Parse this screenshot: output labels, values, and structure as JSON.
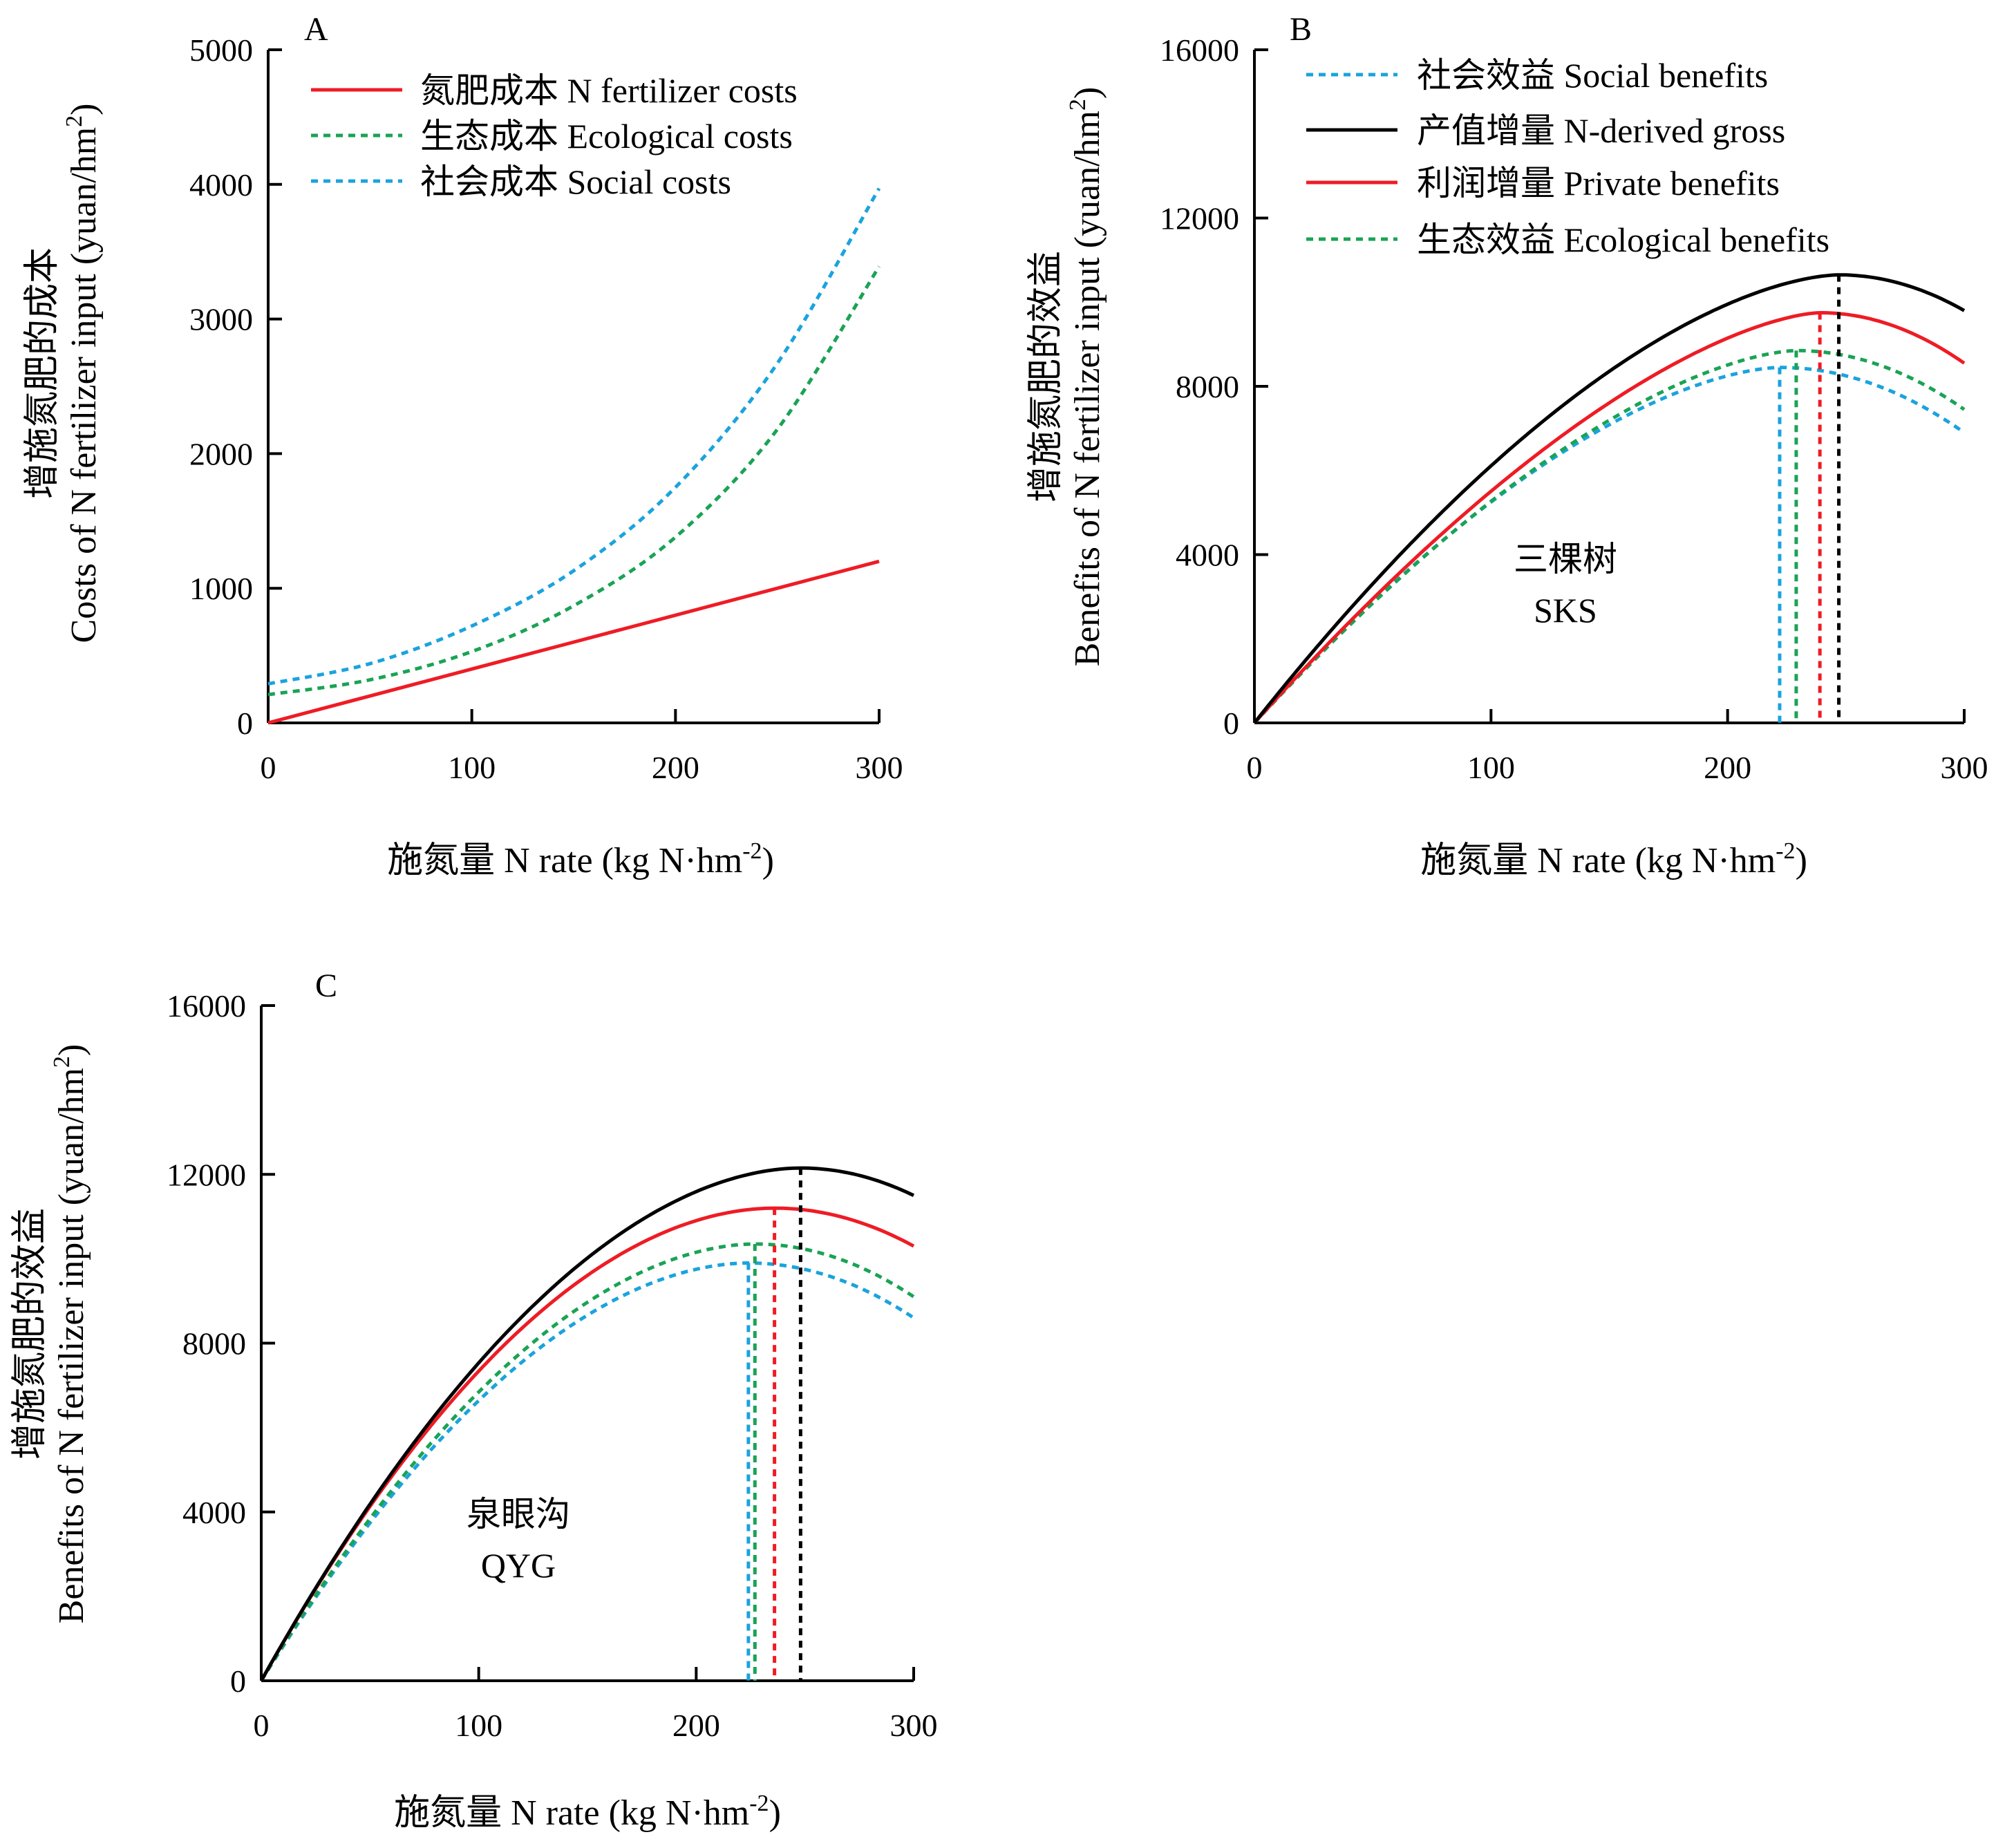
{
  "figure": {
    "x_axis_title": "施氮量  N rate (kg N·hm",
    "x_axis_title_sup": "-2",
    "x_axis_title_end": ")"
  },
  "colors": {
    "red": "#ee1c25",
    "green": "#1aa355",
    "blue": "#1ba3dd",
    "black": "#000000"
  },
  "chart_data": [
    {
      "panel": "A",
      "type": "line",
      "ylabel_cn": "增施氮肥的成本",
      "ylabel_en": "Costs of  N fertilizer input (yuan/hm",
      "ylabel_sup": "2",
      "ylabel_end": ")",
      "xlim": [
        0,
        300
      ],
      "ylim": [
        0,
        5000
      ],
      "xticks": [
        "0",
        "100",
        "200",
        "300"
      ],
      "yticks": [
        "0",
        "1000",
        "2000",
        "3000",
        "4000",
        "5000"
      ],
      "legend_position": "top-left",
      "x": [
        0,
        50,
        100,
        150,
        200,
        250,
        300
      ],
      "series": [
        {
          "name": "氮肥成本 N fertilizer costs",
          "color": "red",
          "dash": false,
          "values": [
            0,
            200,
            400,
            600,
            800,
            1000,
            1200
          ]
        },
        {
          "name": "生态成本 Ecological costs",
          "color": "green",
          "dash": true,
          "values": [
            210,
            320,
            530,
            870,
            1380,
            2180,
            3390
          ]
        },
        {
          "name": "社会成本 Social costs",
          "color": "blue",
          "dash": true,
          "values": [
            290,
            440,
            720,
            1130,
            1750,
            2670,
            3970
          ]
        }
      ]
    },
    {
      "panel": "B",
      "type": "line",
      "ylabel_cn": "增施氮肥的效益",
      "ylabel_en": "Benefits of  N fertilizer input (yuan/hm",
      "ylabel_sup": "2",
      "ylabel_end": ")",
      "xlim": [
        0,
        300
      ],
      "ylim": [
        0,
        16000
      ],
      "xticks": [
        "0",
        "100",
        "200",
        "300"
      ],
      "yticks": [
        "0",
        "4000",
        "8000",
        "12000",
        "16000"
      ],
      "legend_position": "top",
      "site_label_cn": "三棵树",
      "site_label_en": "SKS",
      "series": [
        {
          "name": "社会效益 Social benefits",
          "color": "blue",
          "dash": true,
          "optimum_x": 222,
          "max_y": 8450,
          "end_y": 6900
        },
        {
          "name": "产值增量 N-derived gross",
          "color": "black",
          "dash": false,
          "optimum_x": 247,
          "max_y": 10650,
          "end_y": 9800
        },
        {
          "name": "利润增量 Private benefits",
          "color": "red",
          "dash": false,
          "optimum_x": 239,
          "max_y": 9750,
          "end_y": 8550
        },
        {
          "name": "生态效益 Ecological benefits",
          "color": "green",
          "dash": true,
          "optimum_x": 229,
          "max_y": 8850,
          "end_y": 7450
        }
      ]
    },
    {
      "panel": "C",
      "type": "line",
      "ylabel_cn": "增施氮肥的效益",
      "ylabel_en": "Benefits of  N fertilizer input (yuan/hm",
      "ylabel_sup": "2",
      "ylabel_end": ")",
      "xlim": [
        0,
        300
      ],
      "ylim": [
        0,
        16000
      ],
      "xticks": [
        "0",
        "100",
        "200",
        "300"
      ],
      "yticks": [
        "0",
        "4000",
        "8000",
        "12000",
        "16000"
      ],
      "site_label_cn": "泉眼沟",
      "site_label_en": "QYG",
      "series": [
        {
          "name": "",
          "color": "blue",
          "dash": true,
          "optimum_x": 224,
          "max_y": 9900,
          "end_y": 8600
        },
        {
          "name": "",
          "color": "black",
          "dash": false,
          "optimum_x": 248,
          "max_y": 12150,
          "end_y": 11500
        },
        {
          "name": "",
          "color": "red",
          "dash": false,
          "optimum_x": 236,
          "max_y": 11200,
          "end_y": 10300
        },
        {
          "name": "",
          "color": "green",
          "dash": true,
          "optimum_x": 227,
          "max_y": 10350,
          "end_y": 9100
        }
      ]
    }
  ]
}
